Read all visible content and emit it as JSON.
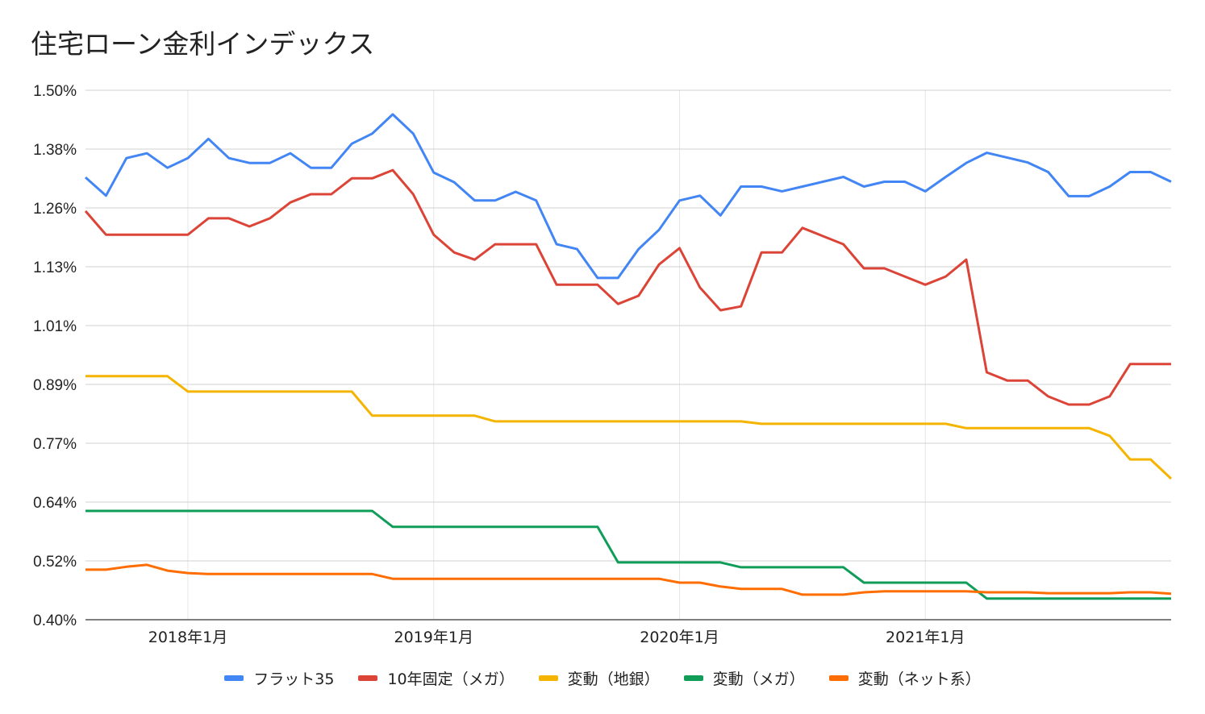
{
  "chart_data": {
    "type": "line",
    "title": "住宅ローン金利インデックス",
    "xlabel": "",
    "ylabel": "",
    "ylim": [
      0.4,
      1.5
    ],
    "y_ticks": [
      "0.40%",
      "0.52%",
      "0.64%",
      "0.77%",
      "0.89%",
      "1.01%",
      "1.13%",
      "1.26%",
      "1.38%",
      "1.50%"
    ],
    "x_ticks": [
      {
        "index": 5,
        "label": "2018年1月"
      },
      {
        "index": 17,
        "label": "2019年1月"
      },
      {
        "index": 29,
        "label": "2020年1月"
      },
      {
        "index": 41,
        "label": "2021年1月"
      }
    ],
    "grid": true,
    "legend_position": "bottom",
    "series": [
      {
        "name": "フラット35",
        "color": "#4285F4",
        "values": [
          1.319,
          1.281,
          1.359,
          1.369,
          1.339,
          1.359,
          1.399,
          1.359,
          1.349,
          1.349,
          1.369,
          1.339,
          1.339,
          1.389,
          1.41,
          1.45,
          1.41,
          1.329,
          1.309,
          1.271,
          1.271,
          1.289,
          1.271,
          1.18,
          1.17,
          1.11,
          1.11,
          1.17,
          1.21,
          1.271,
          1.281,
          1.24,
          1.3,
          1.3,
          1.29,
          1.3,
          1.31,
          1.32,
          1.3,
          1.31,
          1.31,
          1.29,
          1.32,
          1.349,
          1.37,
          1.36,
          1.35,
          1.33,
          1.28,
          1.28,
          1.3,
          1.33,
          1.33,
          1.31
        ]
      },
      {
        "name": "10年固定（メガ）",
        "color": "#DB4437",
        "values": [
          1.249,
          1.2,
          1.2,
          1.2,
          1.2,
          1.2,
          1.234,
          1.234,
          1.217,
          1.234,
          1.267,
          1.284,
          1.284,
          1.317,
          1.317,
          1.334,
          1.284,
          1.2,
          1.163,
          1.148,
          1.18,
          1.18,
          1.18,
          1.096,
          1.096,
          1.096,
          1.056,
          1.073,
          1.138,
          1.172,
          1.09,
          1.043,
          1.051,
          1.163,
          1.163,
          1.214,
          1.197,
          1.18,
          1.13,
          1.13,
          1.113,
          1.096,
          1.113,
          1.148,
          0.914,
          0.897,
          0.897,
          0.864,
          0.847,
          0.847,
          0.864,
          0.931,
          0.931,
          0.931
        ]
      },
      {
        "name": "変動（地銀）",
        "color": "#F4B400",
        "values": [
          0.906,
          0.906,
          0.906,
          0.906,
          0.906,
          0.874,
          0.874,
          0.874,
          0.874,
          0.874,
          0.874,
          0.874,
          0.874,
          0.874,
          0.824,
          0.824,
          0.824,
          0.824,
          0.824,
          0.824,
          0.812,
          0.812,
          0.812,
          0.812,
          0.812,
          0.812,
          0.812,
          0.812,
          0.812,
          0.812,
          0.812,
          0.812,
          0.812,
          0.807,
          0.807,
          0.807,
          0.807,
          0.807,
          0.807,
          0.807,
          0.807,
          0.807,
          0.807,
          0.798,
          0.798,
          0.798,
          0.798,
          0.798,
          0.798,
          0.798,
          0.782,
          0.733,
          0.733,
          0.693
        ]
      },
      {
        "name": "変動（メガ）",
        "color": "#0F9D58",
        "values": [
          0.626,
          0.626,
          0.626,
          0.626,
          0.626,
          0.626,
          0.626,
          0.626,
          0.626,
          0.626,
          0.626,
          0.626,
          0.626,
          0.626,
          0.626,
          0.593,
          0.593,
          0.593,
          0.593,
          0.593,
          0.593,
          0.593,
          0.593,
          0.593,
          0.593,
          0.593,
          0.519,
          0.519,
          0.519,
          0.519,
          0.519,
          0.519,
          0.509,
          0.509,
          0.509,
          0.509,
          0.509,
          0.509,
          0.477,
          0.477,
          0.477,
          0.477,
          0.477,
          0.477,
          0.444,
          0.444,
          0.444,
          0.444,
          0.444,
          0.444,
          0.444,
          0.444,
          0.444,
          0.444
        ]
      },
      {
        "name": "変動（ネット系）",
        "color": "#FF6D00",
        "values": [
          0.504,
          0.504,
          0.51,
          0.514,
          0.502,
          0.497,
          0.495,
          0.495,
          0.495,
          0.495,
          0.495,
          0.495,
          0.495,
          0.495,
          0.495,
          0.485,
          0.485,
          0.485,
          0.485,
          0.485,
          0.485,
          0.485,
          0.485,
          0.485,
          0.485,
          0.485,
          0.485,
          0.485,
          0.485,
          0.477,
          0.477,
          0.469,
          0.464,
          0.464,
          0.464,
          0.452,
          0.452,
          0.452,
          0.457,
          0.459,
          0.459,
          0.459,
          0.459,
          0.459,
          0.457,
          0.457,
          0.457,
          0.455,
          0.455,
          0.455,
          0.455,
          0.457,
          0.457,
          0.454
        ]
      }
    ]
  }
}
